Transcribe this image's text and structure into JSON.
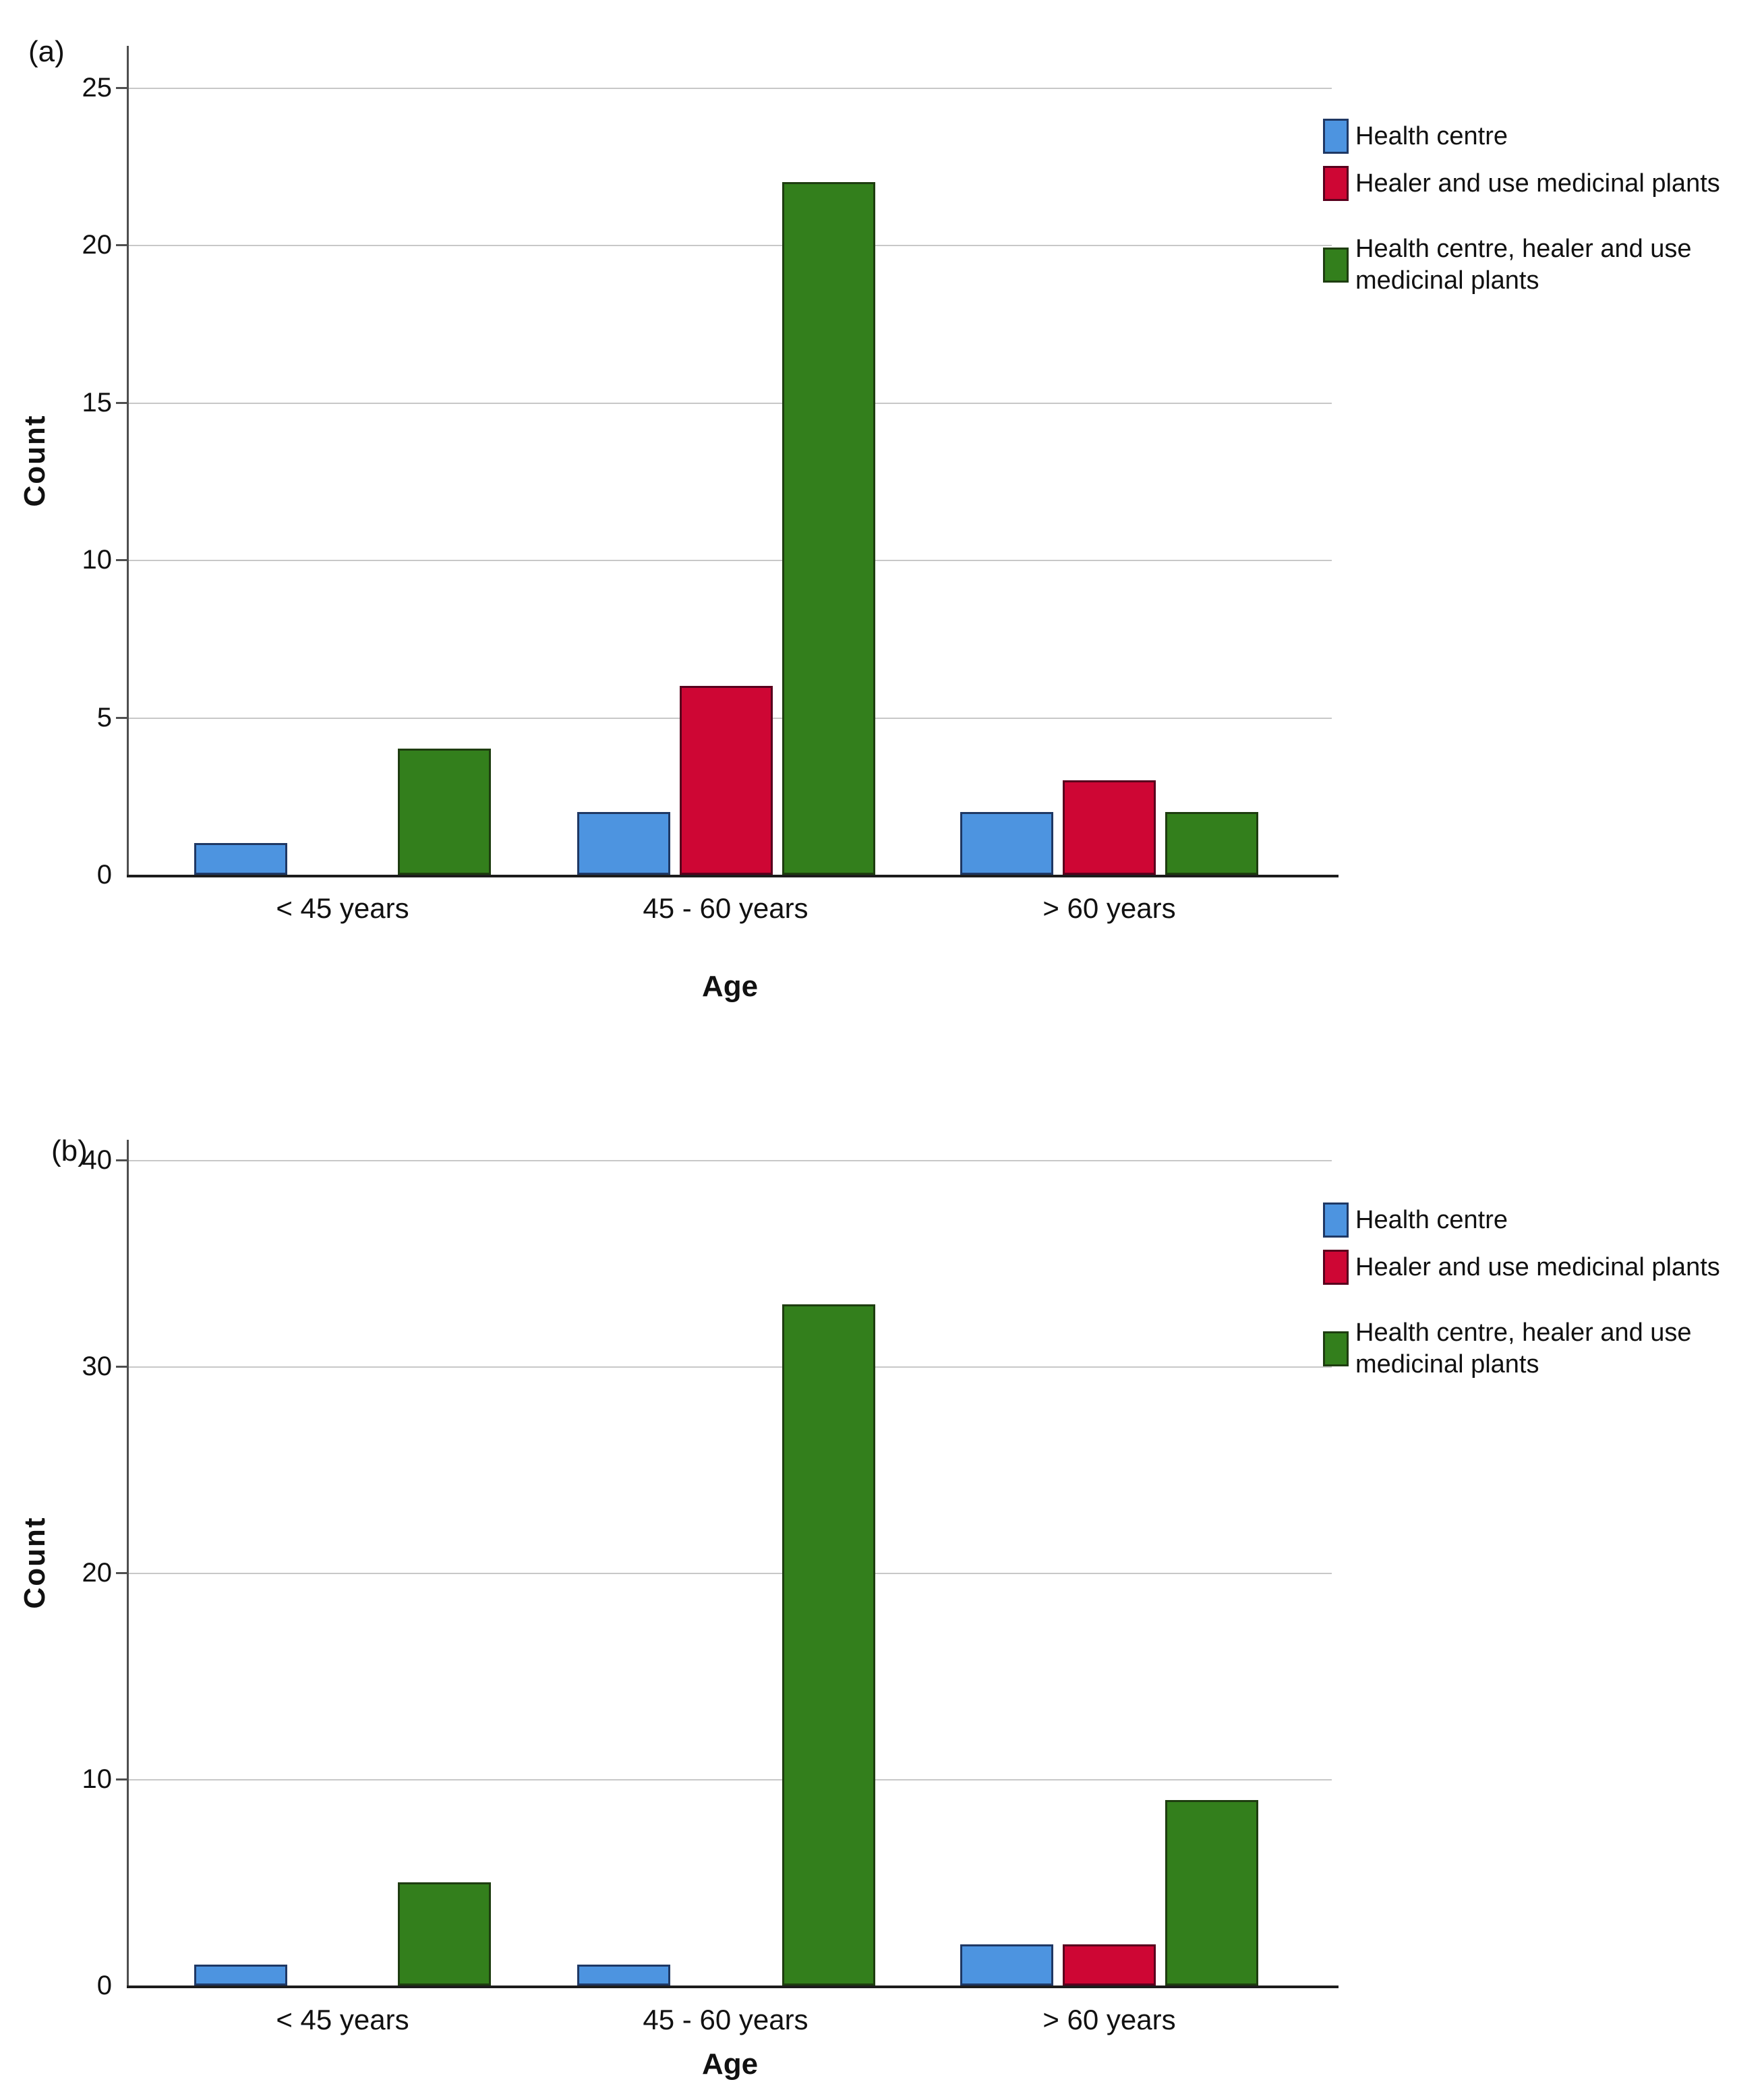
{
  "chart_data": [
    {
      "panel_label": "(a)",
      "type": "bar",
      "title": "",
      "xlabel": "Age",
      "ylabel": "Count",
      "categories": [
        "< 45 years",
        "45 - 60 years",
        "> 60 years"
      ],
      "series": [
        {
          "name": "Health centre",
          "values": [
            1,
            2,
            2
          ],
          "color": "#4D94E0",
          "border_color": "#1F3864"
        },
        {
          "name": "Healer and use medicinal plants",
          "values": [
            0,
            6,
            3
          ],
          "color": "#CE0634",
          "border_color": "#58001D"
        },
        {
          "name": "Health centre, healer and use\nmedicinal plants",
          "values": [
            4,
            22,
            2
          ],
          "color": "#337F1C",
          "border_color": "#1E3D10"
        }
      ],
      "y_ticks": [
        0,
        5,
        10,
        15,
        20,
        25
      ],
      "ylim": [
        0,
        26.3
      ],
      "grid": true,
      "legend_position": "right"
    },
    {
      "panel_label": "(b)",
      "type": "bar",
      "title": "",
      "xlabel": "Age",
      "ylabel": "Count",
      "categories": [
        "< 45 years",
        "45 - 60 years",
        "> 60 years"
      ],
      "series": [
        {
          "name": "Health centre",
          "values": [
            1,
            1,
            2
          ],
          "color": "#4D94E0",
          "border_color": "#1F3864"
        },
        {
          "name": "Healer and use medicinal plants",
          "values": [
            0,
            0,
            2
          ],
          "color": "#CE0634",
          "border_color": "#58001D"
        },
        {
          "name": "Health centre, healer and use\nmedicinal plants",
          "values": [
            5,
            33,
            9
          ],
          "color": "#337F1C",
          "border_color": "#1E3D10"
        }
      ],
      "y_ticks": [
        0,
        10,
        20,
        30,
        40
      ],
      "ylim": [
        0,
        41
      ],
      "grid": true,
      "legend_position": "right"
    }
  ],
  "colors": {
    "gridline": "#C8C8C8",
    "x_axis": "#1C1C1C",
    "y_axis": "#4F4F4F",
    "text": "#111111",
    "background": "#FFFFFF"
  }
}
